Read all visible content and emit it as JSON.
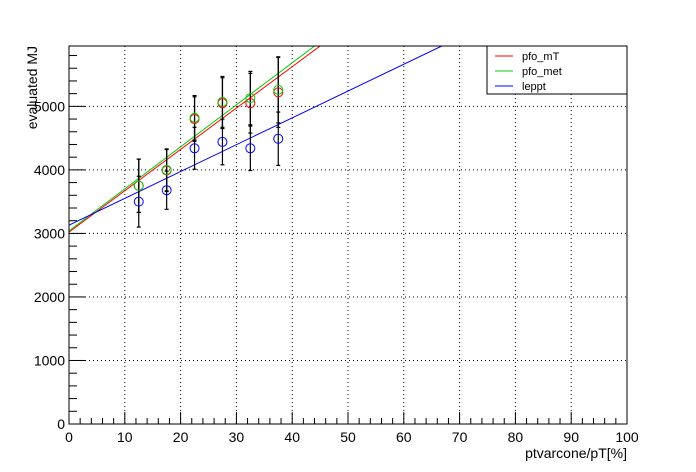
{
  "chart_data": {
    "type": "scatter",
    "xlabel": "ptvarcone/pT[%]",
    "ylabel": "evaluated MJ",
    "xlim": [
      0,
      100
    ],
    "ylim": [
      0,
      5950
    ],
    "x_ticks": [
      "0",
      "10",
      "20",
      "30",
      "40",
      "50",
      "60",
      "70",
      "80",
      "90",
      "100"
    ],
    "y_ticks": [
      "0",
      "1000",
      "2000",
      "3000",
      "4000",
      "5000"
    ],
    "grid": true,
    "legend_position": "top-right",
    "series": [
      {
        "name": "pfo_mT",
        "color": "#ff0000",
        "x": [
          12.5,
          17.5,
          22.5,
          27.5,
          32.5,
          37.5
        ],
        "y": [
          3750,
          3990,
          4800,
          5050,
          5050,
          5220
        ],
        "y_err": [
          420,
          330,
          350,
          400,
          470,
          550
        ],
        "fit_line": {
          "x": [
            0,
            45
          ],
          "y": [
            3020,
            5950
          ]
        }
      },
      {
        "name": "pfo_met",
        "color": "#00cc00",
        "x": [
          12.5,
          17.5,
          22.5,
          27.5,
          32.5,
          37.5
        ],
        "y": [
          3750,
          4000,
          4820,
          5070,
          5130,
          5260
        ],
        "y_err": [
          420,
          330,
          350,
          400,
          420,
          520
        ],
        "fit_line": {
          "x": [
            0,
            44
          ],
          "y": [
            3040,
            5950
          ]
        }
      },
      {
        "name": "leppt",
        "color": "#0000ff",
        "x": [
          12.5,
          17.5,
          22.5,
          27.5,
          32.5,
          37.5
        ],
        "y": [
          3500,
          3680,
          4340,
          4440,
          4340,
          4490
        ],
        "y_err": [
          400,
          300,
          330,
          360,
          350,
          420
        ],
        "fit_line": {
          "x": [
            0,
            66.8
          ],
          "y": [
            3130,
            5950
          ]
        }
      }
    ]
  }
}
